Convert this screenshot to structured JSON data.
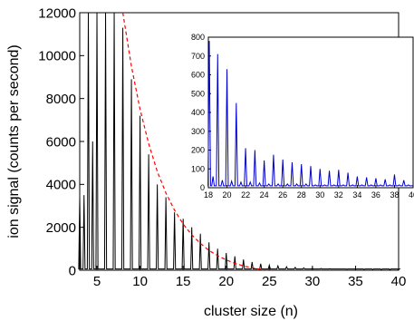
{
  "chart_data": [
    {
      "type": "line",
      "xlabel": "cluster size (n)",
      "ylabel": "ion signal (counts per second)",
      "xlim": [
        3,
        40
      ],
      "ylim": [
        0,
        12000
      ],
      "x_ticks": [
        5,
        10,
        15,
        20,
        25,
        30,
        35,
        40
      ],
      "y_ticks": [
        0,
        2000,
        4000,
        6000,
        8000,
        10000,
        12000
      ],
      "grid": false,
      "series": [
        {
          "color": "#000000",
          "style": "solid",
          "peaks": {
            "x": [
              3,
              3.5,
              4,
              4.5,
              5,
              6,
              7,
              8,
              9,
              10,
              11,
              12,
              13,
              14,
              15,
              16,
              17,
              18,
              19,
              20,
              21,
              22,
              23,
              24,
              25,
              26,
              27,
              28,
              29,
              30,
              31,
              32,
              33,
              34,
              35,
              36,
              37,
              38,
              39,
              40
            ],
            "y": [
              3400,
              3500,
              12000,
              6000,
              12000,
              12000,
              12000,
              11300,
              8900,
              7200,
              5400,
              4000,
              3400,
              2700,
              2400,
              2000,
              1700,
              1300,
              1000,
              800,
              650,
              500,
              380,
              300,
              240,
              200,
              160,
              130,
              110,
              90,
              80,
              70,
              60,
              50,
              45,
              40,
              35,
              30,
              28,
              25
            ]
          }
        },
        {
          "color": "#ff0000",
          "style": "dashed",
          "x": [
            8,
            9,
            10,
            11,
            12,
            13,
            14,
            15,
            16,
            17,
            18,
            19,
            20,
            21,
            22,
            23,
            24,
            25
          ],
          "y": [
            12000,
            9500,
            7500,
            5900,
            4600,
            3600,
            2800,
            2150,
            1650,
            1250,
            920,
            680,
            480,
            320,
            200,
            110,
            45,
            0
          ]
        }
      ]
    },
    {
      "type": "line",
      "xlabel": "",
      "ylabel": "",
      "xlim": [
        18,
        40
      ],
      "ylim": [
        0,
        800
      ],
      "x_ticks": [
        18,
        20,
        22,
        24,
        26,
        28,
        30,
        32,
        34,
        36,
        38,
        40
      ],
      "y_ticks": [
        0,
        100,
        200,
        300,
        400,
        500,
        600,
        700,
        800
      ],
      "grid": false,
      "series": [
        {
          "color": "#0000cc",
          "style": "solid",
          "peaks": {
            "x": [
              18.1,
              18.5,
              19,
              19.5,
              20,
              20.5,
              21,
              21.5,
              22,
              22.5,
              23,
              23.5,
              24,
              24.5,
              25,
              25.5,
              26,
              26.5,
              27,
              27.5,
              28,
              28.5,
              29,
              29.5,
              30,
              30.5,
              31,
              31.5,
              32,
              32.5,
              33,
              33.5,
              34,
              34.5,
              35,
              35.5,
              36,
              36.5,
              37,
              37.5,
              38,
              38.5,
              39,
              39.5
            ],
            "y": [
              780,
              60,
              710,
              40,
              630,
              35,
              450,
              30,
              210,
              30,
              200,
              25,
              145,
              20,
              175,
              20,
              150,
              20,
              135,
              20,
              125,
              20,
              115,
              15,
              100,
              15,
              90,
              15,
              95,
              15,
              80,
              15,
              60,
              15,
              55,
              15,
              50,
              15,
              45,
              15,
              70,
              15,
              40,
              15
            ]
          }
        }
      ]
    }
  ]
}
